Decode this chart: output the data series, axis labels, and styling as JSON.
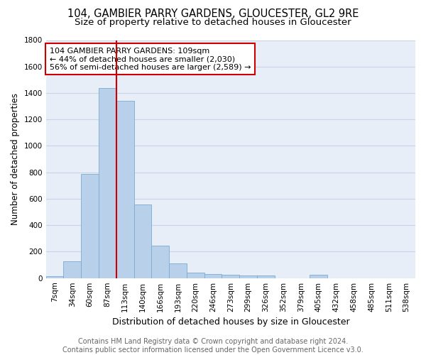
{
  "title": "104, GAMBIER PARRY GARDENS, GLOUCESTER, GL2 9RE",
  "subtitle": "Size of property relative to detached houses in Gloucester",
  "xlabel": "Distribution of detached houses by size in Gloucester",
  "ylabel": "Number of detached properties",
  "categories": [
    "7sqm",
    "34sqm",
    "60sqm",
    "87sqm",
    "113sqm",
    "140sqm",
    "166sqm",
    "193sqm",
    "220sqm",
    "246sqm",
    "273sqm",
    "299sqm",
    "326sqm",
    "352sqm",
    "379sqm",
    "405sqm",
    "432sqm",
    "458sqm",
    "485sqm",
    "511sqm",
    "538sqm"
  ],
  "values": [
    15,
    125,
    790,
    1440,
    1340,
    555,
    248,
    110,
    40,
    30,
    25,
    20,
    20,
    0,
    0,
    25,
    0,
    0,
    0,
    0,
    0
  ],
  "bar_color": "#b8d0ea",
  "bar_edge_color": "#7aabd0",
  "vline_color": "#cc0000",
  "vline_x_index": 3.5,
  "annotation_text": "104 GAMBIER PARRY GARDENS: 109sqm\n← 44% of detached houses are smaller (2,030)\n56% of semi-detached houses are larger (2,589) →",
  "annotation_box_color": "#ffffff",
  "annotation_box_edge_color": "#cc0000",
  "ylim": [
    0,
    1800
  ],
  "yticks": [
    0,
    200,
    400,
    600,
    800,
    1000,
    1200,
    1400,
    1600,
    1800
  ],
  "grid_color": "#c8d4e8",
  "bg_color": "#e8eef8",
  "footer_text": "Contains HM Land Registry data © Crown copyright and database right 2024.\nContains public sector information licensed under the Open Government Licence v3.0.",
  "title_fontsize": 10.5,
  "subtitle_fontsize": 9.5,
  "xlabel_fontsize": 9,
  "ylabel_fontsize": 8.5,
  "tick_fontsize": 7.5,
  "annotation_fontsize": 8,
  "footer_fontsize": 7
}
